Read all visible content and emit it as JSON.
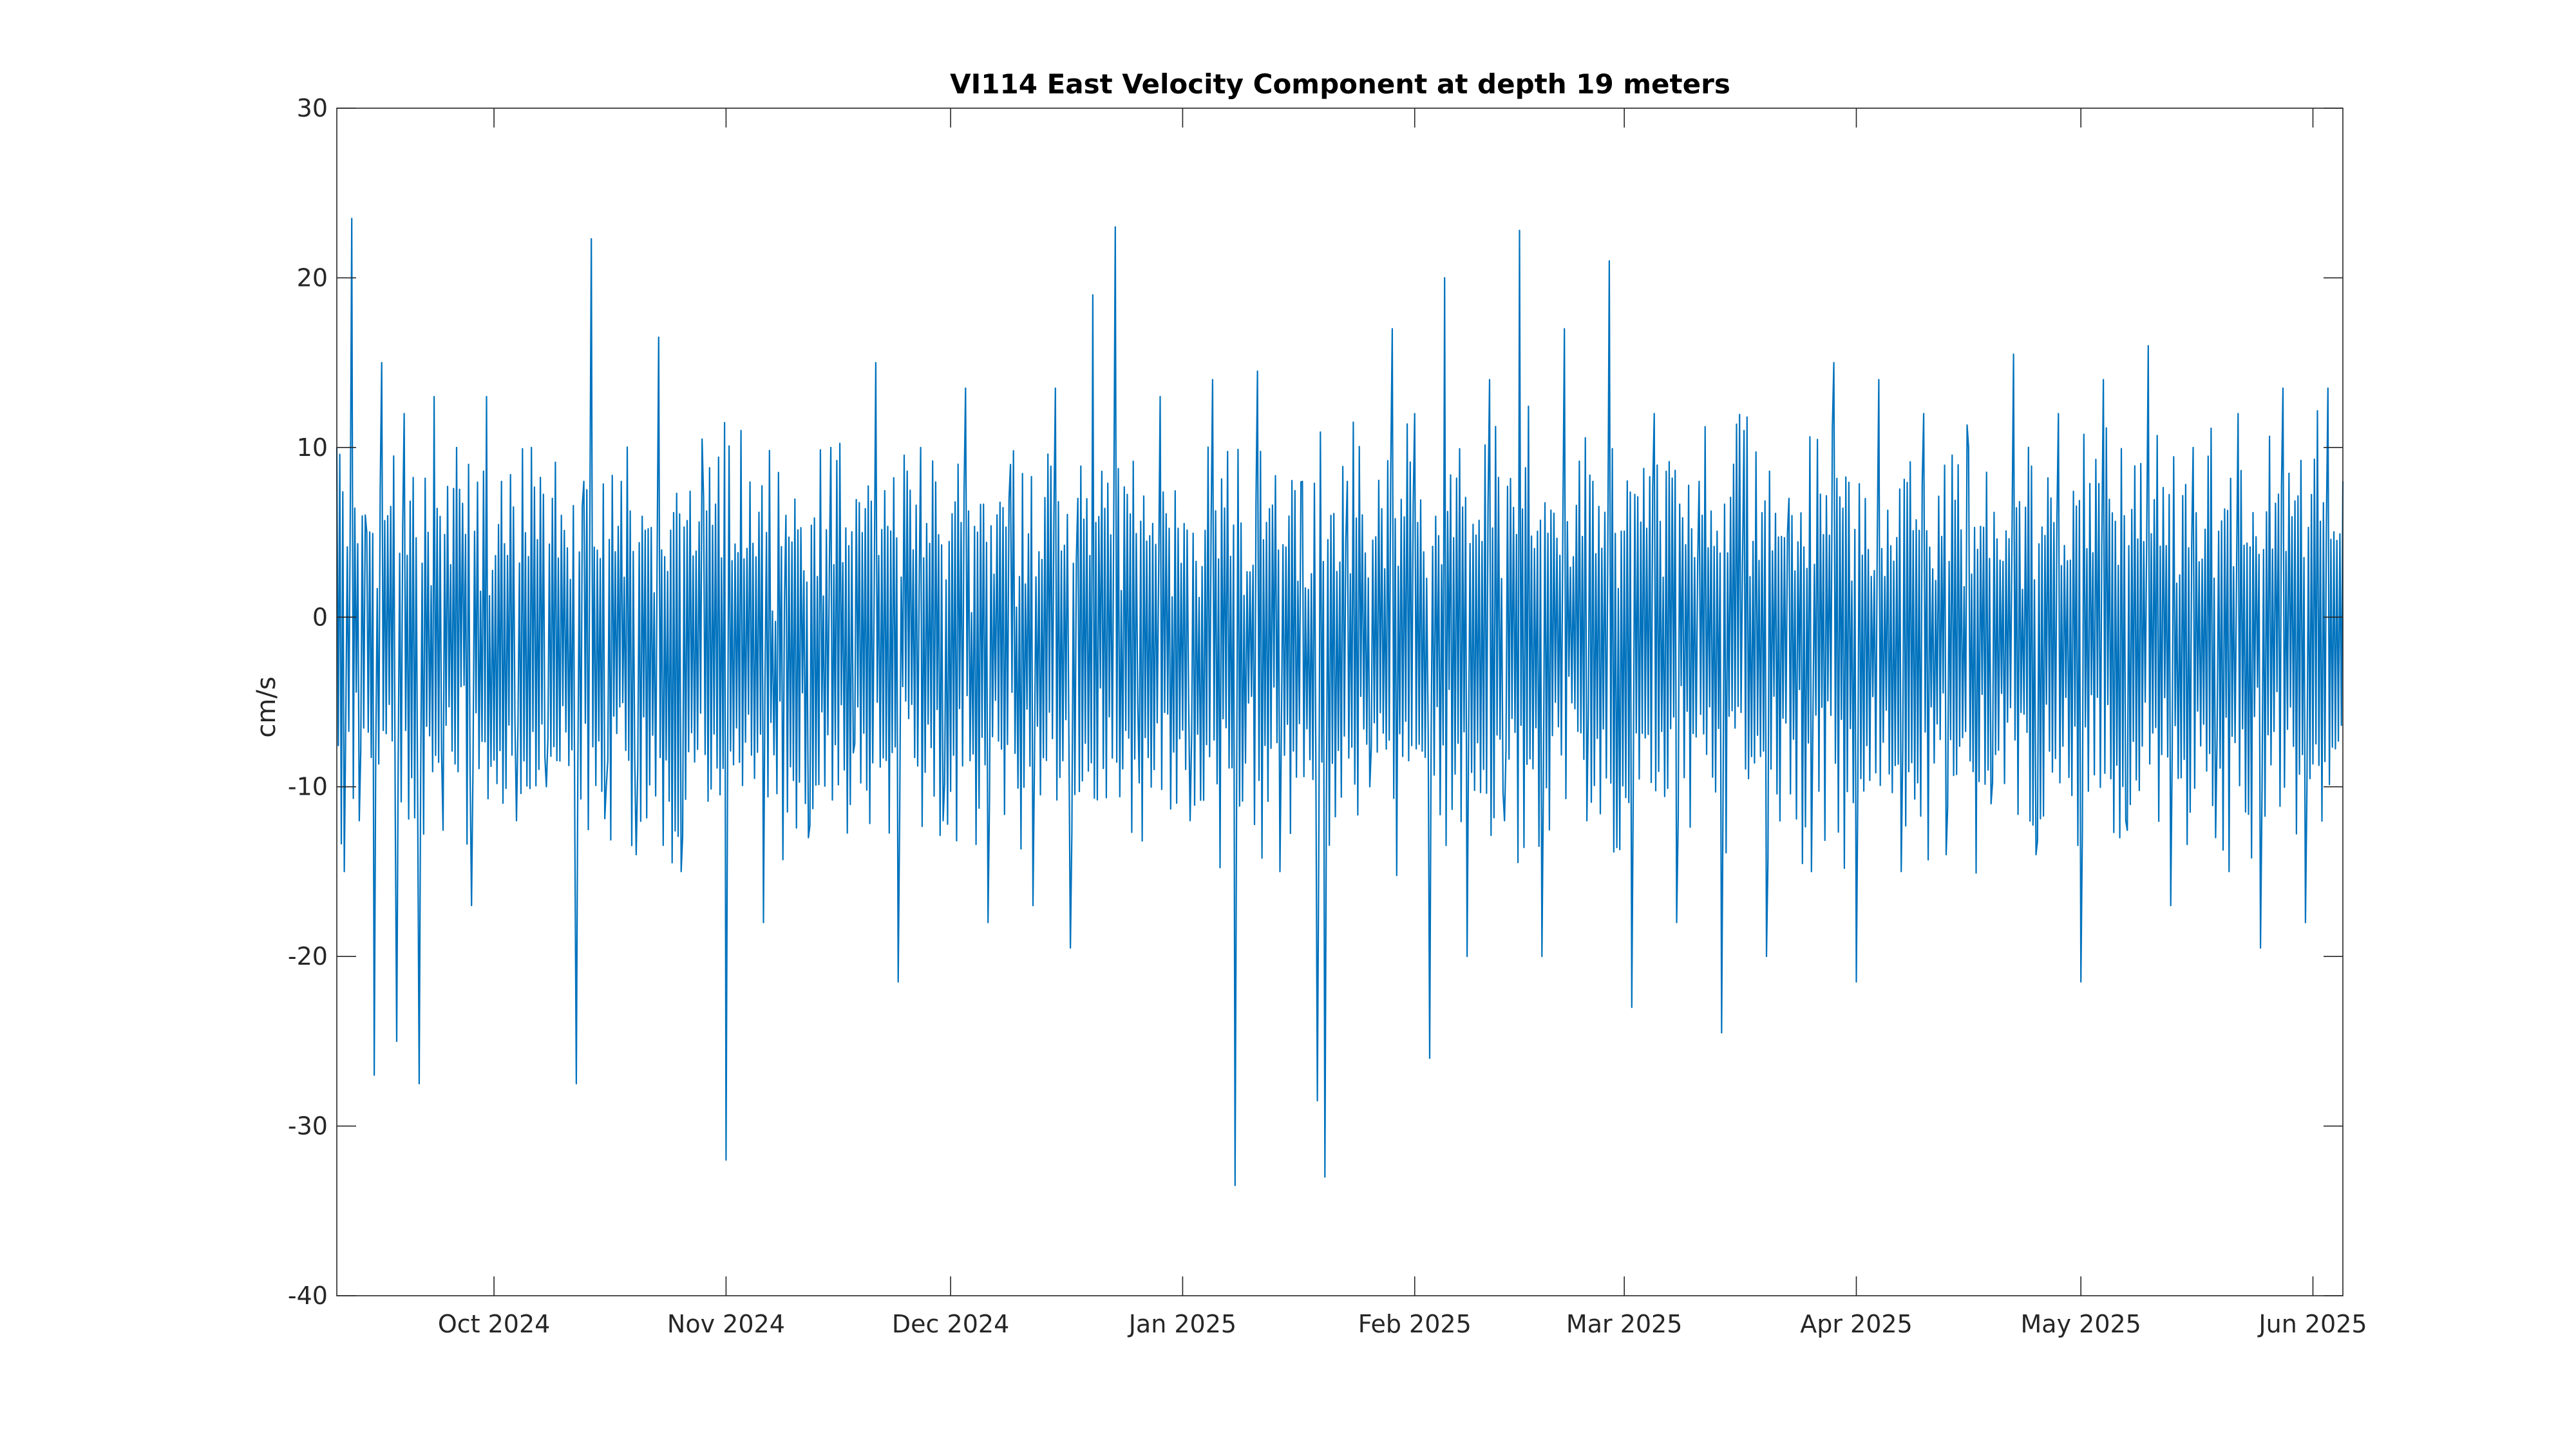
{
  "chart_data": {
    "type": "line",
    "title": "VI114 East Velocity Component at depth 19 meters",
    "xlabel": "",
    "ylabel": "cm/s",
    "xlim": [
      "2024-09-10",
      "2025-06-05"
    ],
    "ylim": [
      -40,
      30
    ],
    "yticks": [
      -40,
      -30,
      -20,
      -10,
      0,
      10,
      20,
      30
    ],
    "xticks": [
      {
        "date": "2024-10-01",
        "label": "Oct 2024"
      },
      {
        "date": "2024-11-01",
        "label": "Nov 2024"
      },
      {
        "date": "2024-12-01",
        "label": "Dec 2024"
      },
      {
        "date": "2025-01-01",
        "label": "Jan 2025"
      },
      {
        "date": "2025-02-01",
        "label": "Feb 2025"
      },
      {
        "date": "2025-03-01",
        "label": "Mar 2025"
      },
      {
        "date": "2025-04-01",
        "label": "Apr 2025"
      },
      {
        "date": "2025-05-01",
        "label": "May 2025"
      },
      {
        "date": "2025-06-01",
        "label": "Jun 2025"
      }
    ],
    "grid": false,
    "legend": "none",
    "series": [
      {
        "color": "#0072BD",
        "x": [
          "2024-09-10",
          "2024-09-11",
          "2024-09-12",
          "2024-09-13",
          "2024-09-14",
          "2024-09-15",
          "2024-09-16",
          "2024-09-18",
          "2024-09-19",
          "2024-09-21",
          "2024-09-23",
          "2024-09-24",
          "2024-09-26",
          "2024-09-28",
          "2024-09-30",
          "2024-10-02",
          "2024-10-04",
          "2024-10-06",
          "2024-10-08",
          "2024-10-10",
          "2024-10-12",
          "2024-10-13",
          "2024-10-14",
          "2024-10-16",
          "2024-10-18",
          "2024-10-20",
          "2024-10-23",
          "2024-10-26",
          "2024-10-29",
          "2024-11-01",
          "2024-11-03",
          "2024-11-06",
          "2024-11-09",
          "2024-11-12",
          "2024-11-15",
          "2024-11-18",
          "2024-11-21",
          "2024-11-24",
          "2024-11-27",
          "2024-11-30",
          "2024-12-03",
          "2024-12-06",
          "2024-12-09",
          "2024-12-12",
          "2024-12-15",
          "2024-12-17",
          "2024-12-18",
          "2024-12-20",
          "2024-12-23",
          "2024-12-26",
          "2024-12-29",
          "2025-01-02",
          "2025-01-05",
          "2025-01-08",
          "2025-01-11",
          "2025-01-14",
          "2025-01-17",
          "2025-01-19",
          "2025-01-20",
          "2025-01-23",
          "2025-01-26",
          "2025-01-29",
          "2025-02-01",
          "2025-02-03",
          "2025-02-05",
          "2025-02-08",
          "2025-02-11",
          "2025-02-13",
          "2025-02-15",
          "2025-02-18",
          "2025-02-21",
          "2025-02-24",
          "2025-02-27",
          "2025-03-02",
          "2025-03-05",
          "2025-03-08",
          "2025-03-11",
          "2025-03-14",
          "2025-03-17",
          "2025-03-20",
          "2025-03-23",
          "2025-03-26",
          "2025-03-29",
          "2025-04-01",
          "2025-04-04",
          "2025-04-07",
          "2025-04-10",
          "2025-04-13",
          "2025-04-16",
          "2025-04-19",
          "2025-04-22",
          "2025-04-25",
          "2025-04-28",
          "2025-05-01",
          "2025-05-04",
          "2025-05-07",
          "2025-05-10",
          "2025-05-13",
          "2025-05-16",
          "2025-05-19",
          "2025-05-22",
          "2025-05-25",
          "2025-05-28",
          "2025-05-31",
          "2025-06-03",
          "2025-06-05"
        ],
        "y": [
          10,
          -15,
          23.5,
          -12,
          5,
          -27,
          15,
          -25,
          12,
          -27.5,
          13,
          -8,
          10,
          -17,
          13,
          8,
          -12,
          10,
          -10,
          6,
          -27.5,
          8,
          22.3,
          -10,
          8,
          -14,
          16.5,
          -15,
          7,
          -32,
          11,
          -18,
          6,
          -13,
          10,
          -8,
          15,
          -21.5,
          10,
          -12,
          13.5,
          -18,
          9,
          -17,
          13.5,
          -19.5,
          7,
          19,
          23,
          -5,
          13,
          -12,
          14,
          -33.5,
          14.5,
          -15,
          8,
          -28.5,
          -33,
          8,
          -10,
          17,
          12,
          -26,
          20,
          -20,
          14,
          -12,
          22.8,
          -20,
          17,
          -12,
          21,
          -23,
          12,
          -18,
          8,
          -24.5,
          11,
          -20,
          7,
          -15,
          15,
          -21.5,
          14,
          -15,
          12,
          -14,
          10,
          -11,
          15.5,
          -14,
          12,
          -21.5,
          14,
          -12,
          16,
          -17,
          10,
          -13,
          12,
          -19.5,
          13.5,
          -18,
          13.5,
          8
        ]
      }
    ]
  }
}
